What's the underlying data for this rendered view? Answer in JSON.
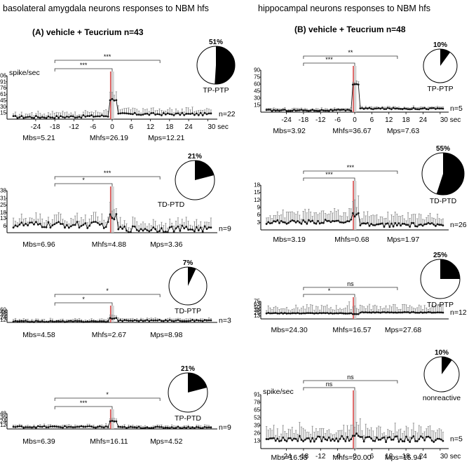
{
  "figure": {
    "left_title": "basolateral amygdala neurons  responses to NBM hfs",
    "right_title": "hippocampal neurons responses to NBM hfs",
    "left_condition": "(A) vehicle + Teucrium  n=43",
    "right_condition": "(B)  vehicle + Teucrium  n=48"
  },
  "colors": {
    "trace": "#111111",
    "error_bar": "#888888",
    "stim_bar": "#e05050",
    "stim_band": "#c8c8c8",
    "pie_fill": "#000000"
  },
  "chart_data": [
    {
      "id": "A1",
      "type": "line",
      "column": "left",
      "ylabel": "spike/sec",
      "ylim": [
        0,
        106
      ],
      "yticks": [
        15,
        30,
        45,
        61,
        76,
        91,
        106
      ],
      "xlim": [
        -33,
        33
      ],
      "xticks": [
        -24,
        -18,
        -12,
        -6,
        0,
        6,
        12,
        18,
        24,
        30
      ],
      "xtick_labels": [
        "-24",
        "-18",
        "-12",
        "-6",
        "0",
        "6",
        "12",
        "18",
        "24",
        "30 sec"
      ],
      "show_xticks": true,
      "n_label": "n=22",
      "response_label": "TP-PTP",
      "percent": 51,
      "pie_label_pos": "below",
      "means": {
        "Mbs": "Mbs=5.21",
        "Mhfs": "Mhfs=26.19",
        "Mps": "Mps=12.21"
      },
      "brackets": [
        {
          "from": -18,
          "to": 0,
          "label": "***"
        },
        {
          "from": -18,
          "to": 15,
          "label": "***"
        }
      ],
      "profile": {
        "base": 5.2,
        "pre_rise": 8,
        "spike": 48,
        "post": 12.2,
        "err": 12,
        "noise": 3
      }
    },
    {
      "id": "A2",
      "type": "line",
      "column": "left",
      "ylabel": "",
      "ylim": [
        0,
        38
      ],
      "yticks": [
        6,
        13,
        18,
        25,
        31,
        38
      ],
      "xlim": [
        -33,
        33
      ],
      "xticks": [],
      "xtick_labels": [],
      "show_xticks": false,
      "n_label": "n=9",
      "response_label": "TD-PTD",
      "percent": 21,
      "pie_label_pos": "left",
      "means": {
        "Mbs": "Mbs=6.96",
        "Mhfs": "Mhfs=4.88",
        "Mps": "Mps=3.36"
      },
      "brackets": [
        {
          "from": -18,
          "to": 0,
          "label": "*"
        },
        {
          "from": -18,
          "to": 15,
          "label": "***"
        }
      ],
      "profile": {
        "base": 7.0,
        "pre_rise": 7,
        "spike": 14,
        "post": 3.4,
        "err": 7,
        "noise": 3
      }
    },
    {
      "id": "A3",
      "type": "line",
      "column": "left",
      "ylabel": "",
      "ylim": [
        0,
        60
      ],
      "yticks": [
        12,
        24,
        36,
        48,
        60
      ],
      "xlim": [
        -33,
        33
      ],
      "xticks": [],
      "xtick_labels": [],
      "show_xticks": false,
      "n_label": "n=3",
      "response_label": "TD-PTP",
      "percent": 7,
      "pie_label_pos": "below",
      "means": {
        "Mbs": "Mbs=4.58",
        "Mhfs": "Mhfs=2.67",
        "Mps": "Mps=8.98"
      },
      "brackets": [
        {
          "from": -18,
          "to": 0,
          "label": "*"
        },
        {
          "from": -18,
          "to": 15,
          "label": "*"
        }
      ],
      "profile": {
        "base": 4.6,
        "pre_rise": 5,
        "spike": 20,
        "post": 9.0,
        "err": 10,
        "noise": 3
      }
    },
    {
      "id": "A4",
      "type": "line",
      "column": "left",
      "ylabel": "",
      "ylim": [
        0,
        48
      ],
      "yticks": [
        12,
        24,
        36,
        48
      ],
      "xlim": [
        -33,
        33
      ],
      "xticks": [],
      "xtick_labels": [],
      "show_xticks": false,
      "n_label": "n=9",
      "response_label": "TP-PTD",
      "percent": 21,
      "pie_label_pos": "below",
      "means": {
        "Mbs": "Mbs=6.39",
        "Mhfs": "Mhfs=16.11",
        "Mps": "Mps=4.52"
      },
      "brackets": [
        {
          "from": -18,
          "to": 0,
          "label": "***"
        },
        {
          "from": -18,
          "to": 15,
          "label": "*"
        }
      ],
      "profile": {
        "base": 6.4,
        "pre_rise": 6,
        "spike": 24,
        "post": 4.5,
        "err": 6,
        "noise": 2.5
      }
    },
    {
      "id": "B1",
      "type": "line",
      "column": "right",
      "ylabel": "",
      "ylim": [
        0,
        90
      ],
      "yticks": [
        15,
        30,
        45,
        60,
        75,
        90
      ],
      "xlim": [
        -33,
        33
      ],
      "xticks": [
        -24,
        -18,
        -12,
        -6,
        0,
        6,
        12,
        18,
        24,
        30
      ],
      "xtick_labels": [
        "-24",
        "-18",
        "-12",
        "-6",
        "0",
        "6",
        "12",
        "18",
        "24",
        "30 sec"
      ],
      "show_xticks": true,
      "n_label": "n=5",
      "response_label": "TP-PTP",
      "percent": 10,
      "pie_label_pos": "below",
      "means": {
        "Mbs": "Mbs=3.92",
        "Mhfs": "Mhfs=36.67",
        "Mps": "Mps=7.63"
      },
      "brackets": [
        {
          "from": -18,
          "to": 0,
          "label": "***"
        },
        {
          "from": -18,
          "to": 15,
          "label": "**"
        }
      ],
      "profile": {
        "base": 3.9,
        "pre_rise": 4,
        "spike": 60,
        "post": 7.6,
        "err": 4,
        "noise": 1.5
      }
    },
    {
      "id": "B2",
      "type": "line",
      "column": "right",
      "ylabel": "",
      "ylim": [
        0,
        18
      ],
      "yticks": [
        3,
        6,
        9,
        12,
        15,
        18
      ],
      "xlim": [
        -33,
        33
      ],
      "xticks": [],
      "xtick_labels": [],
      "show_xticks": false,
      "n_label": "n=26",
      "response_label": "TD-PTD",
      "percent": 55,
      "pie_label_pos": "below",
      "means": {
        "Mbs": "Mbs=3.19",
        "Mhfs": "Mhfs=0.68",
        "Mps": "Mps=1.97"
      },
      "brackets": [
        {
          "from": -18,
          "to": 0,
          "label": "***"
        },
        {
          "from": -18,
          "to": 15,
          "label": "***"
        }
      ],
      "profile": {
        "base": 3.2,
        "pre_rise": 3.5,
        "spike": 6,
        "post": 2.0,
        "err": 4,
        "noise": 0.8
      }
    },
    {
      "id": "B3",
      "type": "line",
      "column": "right",
      "ylabel": "",
      "ylim": [
        0,
        75
      ],
      "yticks": [
        13,
        25,
        38,
        50,
        63,
        75
      ],
      "xlim": [
        -33,
        33
      ],
      "xticks": [],
      "xtick_labels": [],
      "show_xticks": false,
      "n_label": "n=12",
      "response_label": "TD-PTP",
      "percent": 25,
      "pie_label_pos": "below",
      "means": {
        "Mbs": "Mbs=24.30",
        "Mhfs": "Mhfs=16.57",
        "Mps": "Mps=27.68"
      },
      "brackets": [
        {
          "from": -18,
          "to": 0,
          "label": "*"
        },
        {
          "from": -18,
          "to": 15,
          "label": "ns"
        }
      ],
      "profile": {
        "base": 24.3,
        "pre_rise": 24,
        "spike": 20,
        "post": 27.7,
        "err": 28,
        "noise": 1.5
      }
    },
    {
      "id": "B4",
      "type": "line",
      "column": "right",
      "ylabel": "spike/sec",
      "ylim": [
        0,
        91
      ],
      "yticks": [
        13,
        26,
        39,
        52,
        65,
        78,
        91
      ],
      "xlim": [
        -33,
        33
      ],
      "xticks": [
        -24,
        -18,
        -12,
        -6,
        0,
        6,
        12,
        18,
        24,
        30
      ],
      "xtick_labels": [
        "-24",
        "-18",
        "-12",
        "-6",
        "0",
        "6",
        "12",
        "18",
        "24",
        "30 sec"
      ],
      "show_xticks": true,
      "n_label": "n=5",
      "response_label": "nonreactive",
      "percent": 10,
      "pie_label_pos": "below",
      "means": {
        "Mbs": "Mbs=16.55",
        "Mhfs": "Mhfs=20.00",
        "Mps": "Mps=15.94"
      },
      "brackets": [
        {
          "from": -18,
          "to": 0,
          "label": "ns"
        },
        {
          "from": -18,
          "to": 15,
          "label": "ns"
        }
      ],
      "profile": {
        "base": 16.5,
        "pre_rise": 17,
        "spike": 22,
        "post": 15.9,
        "err": 18,
        "noise": 5
      }
    }
  ]
}
